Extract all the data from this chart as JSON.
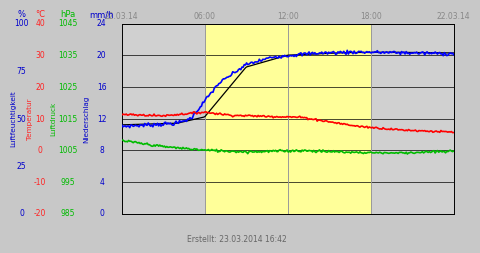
{
  "footer": "Erstellt: 23.03.2014 16:42",
  "bg_color": "#c8c8c8",
  "yellow_bg": "#ffff99",
  "plot_area_bg": "#d0d0d0",
  "left_axis_color": "#0000cc",
  "temp_axis_color": "#ff2222",
  "pressure_axis_color": "#00bb00",
  "precip_axis_color": "#0000cc",
  "blue_line_color": "#0000ff",
  "red_line_color": "#ff0000",
  "green_line_color": "#00bb00",
  "black_line_color": "#000000",
  "tick_label_color": "#888888",
  "grid_color": "#000000",
  "vline_color": "#999999",
  "pct_ticks": [
    0,
    25,
    50,
    75,
    100
  ],
  "pct_y": [
    0,
    6,
    12,
    18,
    24
  ],
  "temp_ticks": [
    -20,
    -10,
    0,
    10,
    20,
    30,
    40
  ],
  "temp_y": [
    0,
    4,
    8,
    12,
    16,
    20,
    24
  ],
  "pres_ticks": [
    985,
    995,
    1005,
    1015,
    1025,
    1035,
    1045
  ],
  "pres_y": [
    0,
    4,
    8,
    12,
    16,
    20,
    24
  ],
  "precip_ticks": [
    0,
    4,
    8,
    12,
    16,
    20,
    24
  ],
  "precip_y": [
    0,
    4,
    8,
    12,
    16,
    20,
    24
  ],
  "x_ticks": [
    0,
    6,
    12,
    18,
    24
  ],
  "x_labels": [
    "22.03.14",
    "06:00",
    "12:00",
    "18:00",
    "22.03.14"
  ],
  "ylim": [
    0,
    24
  ],
  "xlim": [
    0,
    24
  ]
}
